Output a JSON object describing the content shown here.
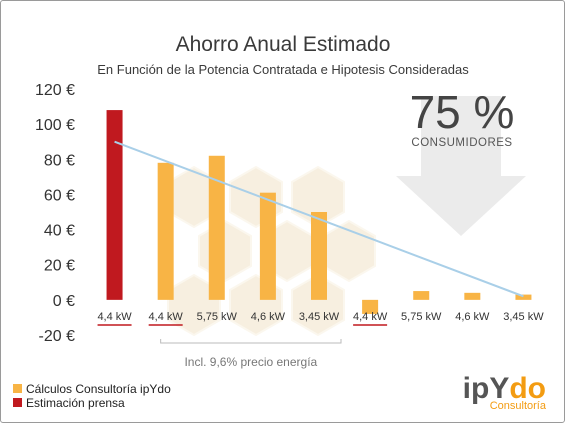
{
  "chart_data": {
    "type": "bar",
    "title": "Ahorro Anual Estimado",
    "subtitle": "En Función de la Potencia Contratada e Hipotesis Consideradas",
    "categories": [
      "4,4 kW",
      "4,4 kW",
      "5,75 kW",
      "4,6 kW",
      "3,45 kW",
      "4,4 kW",
      "5,75 kW",
      "4,6 kW",
      "3,45 kW"
    ],
    "y_ticks": [
      "120 €",
      "100 €",
      "80 €",
      "60 €",
      "40 €",
      "20 €",
      "0 €",
      "-20 €"
    ],
    "ylim": [
      -20,
      120
    ],
    "grid": false,
    "series": [
      {
        "name": "Cálculos Consultoría ipYdo",
        "color": "#f8b445",
        "values": [
          null,
          78,
          82,
          61,
          50,
          -8,
          5,
          4,
          3
        ]
      },
      {
        "name": "Estimación prensa",
        "color": "#c0191f",
        "values": [
          108,
          null,
          null,
          null,
          null,
          null,
          null,
          null,
          null
        ]
      }
    ],
    "trendline": {
      "color": "#a9cfe8",
      "from_category": 0,
      "from_value": 90,
      "to_category": 8,
      "to_value": 2
    },
    "underlined_categories": [
      0,
      1,
      5
    ],
    "underline_color": "#c0191f",
    "brace_label": "Incl. 9,6% precio energía",
    "brace_range": [
      1,
      4
    ],
    "legend_position": "bottom-left"
  },
  "callout": {
    "value": "75 %",
    "label": "CONSUMIDORES"
  },
  "logo": {
    "text_a": "ipY",
    "text_b": "do",
    "sub": "Consultoría",
    "color_a": "#555555",
    "color_b": "#f39c12"
  }
}
